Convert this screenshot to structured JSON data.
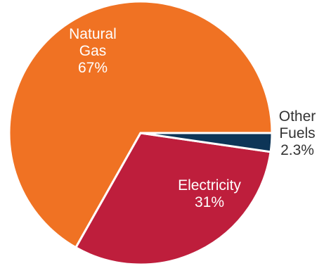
{
  "chart_data": {
    "type": "pie",
    "title": "",
    "slices": [
      {
        "name": "Natural Gas",
        "label_lines": [
          "Natural",
          "Gas"
        ],
        "value": 67,
        "value_label": "67%",
        "color": "#F07223",
        "label_color": "#ffffff",
        "label_placement": "inside"
      },
      {
        "name": "Electricity",
        "label_lines": [
          "Electricity"
        ],
        "value": 31,
        "value_label": "31%",
        "color": "#BE1E3C",
        "label_color": "#ffffff",
        "label_placement": "inside"
      },
      {
        "name": "Other Fuels",
        "label_lines": [
          "Other",
          "Fuels"
        ],
        "value": 2.3,
        "value_label": "2.3%",
        "color": "#0D3557",
        "label_color": "#333333",
        "label_placement": "outside"
      }
    ]
  }
}
